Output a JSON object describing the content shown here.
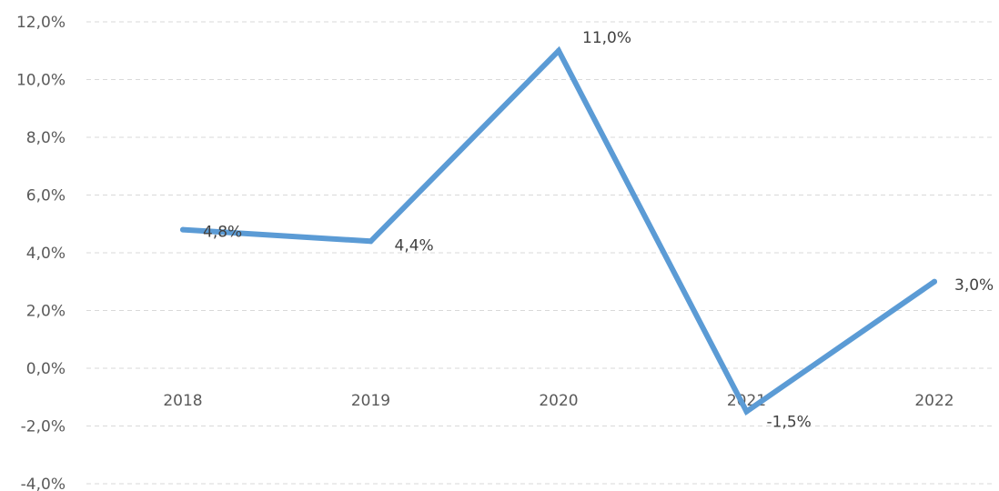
{
  "chart_data": {
    "type": "line",
    "title": "",
    "xlabel": "",
    "ylabel": "",
    "categories": [
      "2018",
      "2019",
      "2020",
      "2021",
      "2022"
    ],
    "series": [
      {
        "values": [
          4.8,
          4.4,
          11.0,
          -1.5,
          3.0
        ],
        "labels": [
          "4,8%",
          "4,4%",
          "11,0%",
          "-1,5%",
          "3,0%"
        ]
      }
    ],
    "ylim": [
      -4,
      12
    ],
    "ytick_values": [
      -4,
      -2,
      0,
      2,
      4,
      6,
      8,
      10,
      12
    ],
    "ytick_labels": [
      "-4,0%",
      "-2,0%",
      "0,0%",
      "2,0%",
      "4,0%",
      "6,0%",
      "8,0%",
      "10,0%",
      "12,0%"
    ],
    "grid": true,
    "legend": "none",
    "line_color": "#5b9bd5"
  }
}
